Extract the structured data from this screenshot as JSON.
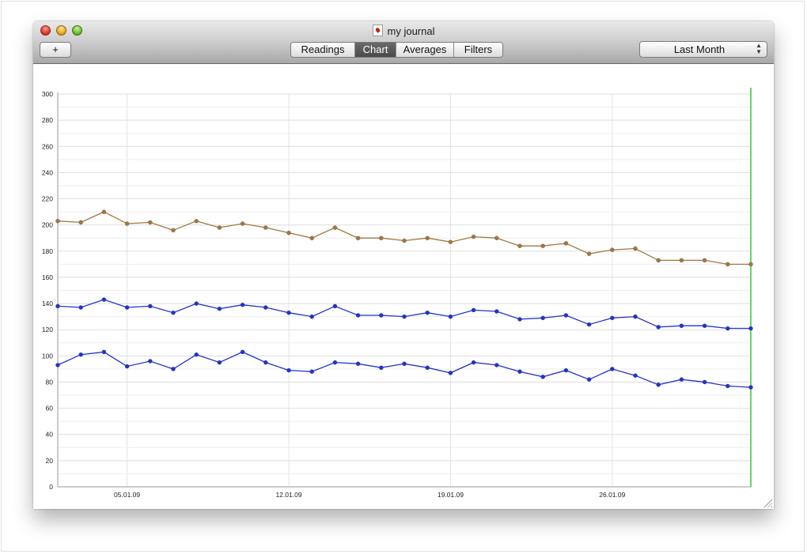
{
  "window": {
    "title": "my journal"
  },
  "toolbar": {
    "add_label": "+",
    "tabs": [
      {
        "label": "Readings",
        "active": false
      },
      {
        "label": "Chart",
        "active": true
      },
      {
        "label": "Averages",
        "active": false
      },
      {
        "label": "Filters",
        "active": false
      }
    ],
    "period": {
      "selected": "Last Month"
    }
  },
  "colors": {
    "series1": "#a2773f",
    "series2": "#2233cc",
    "series3": "#2233cc",
    "today_marker": "#33cc33"
  },
  "chart_data": {
    "type": "line",
    "x_ticks": [
      "05.01.09",
      "12.01.09",
      "19.01.09",
      "26.01.09"
    ],
    "x_range": [
      "2009-01-02",
      "2009-02-01"
    ],
    "ylim": [
      0,
      300
    ],
    "y_ticks": [
      0,
      20,
      40,
      60,
      80,
      100,
      120,
      140,
      160,
      180,
      200,
      220,
      240,
      260,
      280,
      300
    ],
    "grid": true,
    "series": [
      {
        "values": [
          203,
          202,
          210,
          201,
          202,
          196,
          203,
          198,
          201,
          198,
          194,
          190,
          198,
          190,
          190,
          188,
          190,
          187,
          191,
          190,
          184,
          184,
          186,
          178,
          181,
          182,
          173,
          173,
          173,
          170,
          170
        ],
        "x": [
          "2009-01-02",
          "2009-01-03",
          "2009-01-04",
          "2009-01-05",
          "2009-01-06",
          "2009-01-07",
          "2009-01-08",
          "2009-01-09",
          "2009-01-10",
          "2009-01-11",
          "2009-01-12",
          "2009-01-13",
          "2009-01-14",
          "2009-01-15",
          "2009-01-16",
          "2009-01-17",
          "2009-01-18",
          "2009-01-19",
          "2009-01-20",
          "2009-01-21",
          "2009-01-22",
          "2009-01-23",
          "2009-01-24",
          "2009-01-25",
          "2009-01-26",
          "2009-01-27",
          "2009-01-28",
          "2009-01-29",
          "2009-01-30",
          "2009-01-31",
          "2009-02-01"
        ]
      },
      {
        "values": [
          138,
          137,
          143,
          137,
          138,
          133,
          140,
          136,
          139,
          137,
          133,
          130,
          138,
          131,
          131,
          130,
          133,
          130,
          135,
          134,
          128,
          129,
          131,
          124,
          129,
          130,
          122,
          123,
          123,
          121,
          121
        ],
        "x": [
          "2009-01-02",
          "2009-01-03",
          "2009-01-04",
          "2009-01-05",
          "2009-01-06",
          "2009-01-07",
          "2009-01-08",
          "2009-01-09",
          "2009-01-10",
          "2009-01-11",
          "2009-01-12",
          "2009-01-13",
          "2009-01-14",
          "2009-01-15",
          "2009-01-16",
          "2009-01-17",
          "2009-01-18",
          "2009-01-19",
          "2009-01-20",
          "2009-01-21",
          "2009-01-22",
          "2009-01-23",
          "2009-01-24",
          "2009-01-25",
          "2009-01-26",
          "2009-01-27",
          "2009-01-28",
          "2009-01-29",
          "2009-01-30",
          "2009-01-31",
          "2009-02-01"
        ]
      },
      {
        "values": [
          93,
          101,
          103,
          92,
          96,
          90,
          101,
          95,
          103,
          95,
          89,
          88,
          95,
          94,
          91,
          94,
          91,
          87,
          95,
          93,
          88,
          84,
          89,
          82,
          90,
          85,
          78,
          82,
          80,
          77,
          76
        ],
        "x": [
          "2009-01-02",
          "2009-01-03",
          "2009-01-04",
          "2009-01-05",
          "2009-01-06",
          "2009-01-07",
          "2009-01-08",
          "2009-01-09",
          "2009-01-10",
          "2009-01-11",
          "2009-01-12",
          "2009-01-13",
          "2009-01-14",
          "2009-01-15",
          "2009-01-16",
          "2009-01-17",
          "2009-01-18",
          "2009-01-19",
          "2009-01-20",
          "2009-01-21",
          "2009-01-22",
          "2009-01-23",
          "2009-01-24",
          "2009-01-25",
          "2009-01-26",
          "2009-01-27",
          "2009-01-28",
          "2009-01-29",
          "2009-01-30",
          "2009-01-31",
          "2009-02-01"
        ]
      }
    ]
  }
}
